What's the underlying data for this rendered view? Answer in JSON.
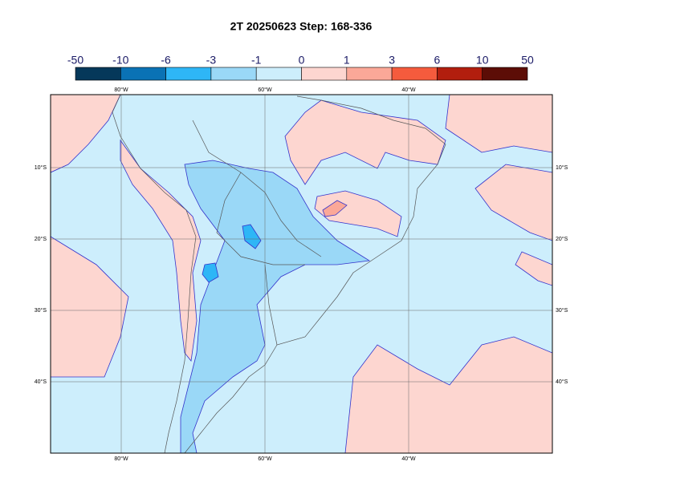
{
  "header": {
    "title": "2T 20250623 Step: 168-336"
  },
  "colorbar": {
    "levels": [
      -50,
      -10,
      -6,
      -3,
      -1,
      0,
      1,
      3,
      6,
      10,
      50
    ],
    "colors": [
      "#05385a",
      "#0a72b5",
      "#2eb6f6",
      "#9ad8f7",
      "#cdeefc",
      "#fdd6d0",
      "#fba898",
      "#f55b3d",
      "#b21e0e",
      "#5c0d06"
    ]
  },
  "map": {
    "lon_labels": [
      "80°W",
      "60°W",
      "40°W"
    ],
    "lat_labels": [
      "10°S",
      "20°S",
      "30°S",
      "40°S"
    ]
  }
}
